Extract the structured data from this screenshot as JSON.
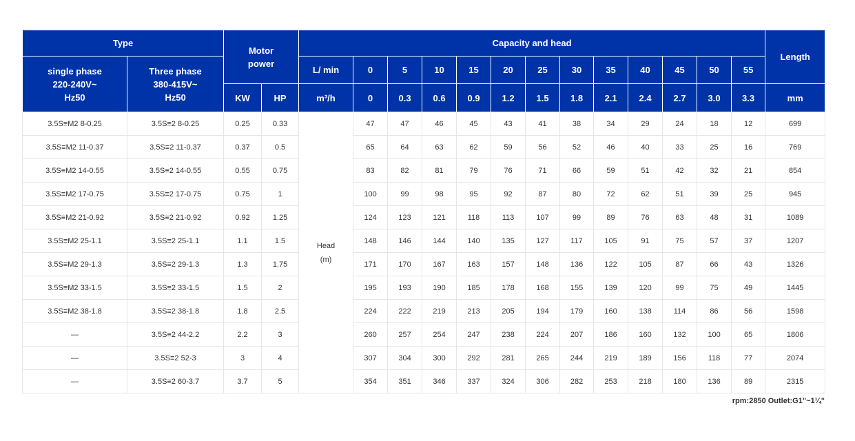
{
  "header": {
    "type": "Type",
    "single_phase": [
      "single phase",
      "220-240V~",
      "Hz50"
    ],
    "three_phase": [
      "Three phase",
      "380-415V~",
      "Hz50"
    ],
    "motor_power": [
      "Motor",
      "power"
    ],
    "kw": "KW",
    "hp": "HP",
    "capacity_and_head": "Capacity and head",
    "flow_lmin_label": "L/ min",
    "flow_m3h_label": "m³/h",
    "length": "Length",
    "length_unit": "mm",
    "flow_lmin": [
      "0",
      "5",
      "10",
      "15",
      "20",
      "25",
      "30",
      "35",
      "40",
      "45",
      "50",
      "55"
    ],
    "flow_m3h": [
      "0",
      "0.3",
      "0.6",
      "0.9",
      "1.2",
      "1.5",
      "1.8",
      "2.1",
      "2.4",
      "2.7",
      "3.0",
      "3.3"
    ]
  },
  "head_label": [
    "Head",
    "(m)"
  ],
  "rows": [
    {
      "single": "3.5S≡M2 8-0.25",
      "three": "3.5S≡2 8-0.25",
      "kw": "0.25",
      "hp": "0.33",
      "heads": [
        "47",
        "47",
        "46",
        "45",
        "43",
        "41",
        "38",
        "34",
        "29",
        "24",
        "18",
        "12"
      ],
      "length": "699"
    },
    {
      "single": "3.5S≡M2 11-0.37",
      "three": "3.5S≡2 11-0.37",
      "kw": "0.37",
      "hp": "0.5",
      "heads": [
        "65",
        "64",
        "63",
        "62",
        "59",
        "56",
        "52",
        "46",
        "40",
        "33",
        "25",
        "16"
      ],
      "length": "769"
    },
    {
      "single": "3.5S≡M2 14-0.55",
      "three": "3.5S≡2 14-0.55",
      "kw": "0.55",
      "hp": "0.75",
      "heads": [
        "83",
        "82",
        "81",
        "79",
        "76",
        "71",
        "66",
        "59",
        "51",
        "42",
        "32",
        "21"
      ],
      "length": "854"
    },
    {
      "single": "3.5S≡M2 17-0.75",
      "three": "3.5S≡2 17-0.75",
      "kw": "0.75",
      "hp": "1",
      "heads": [
        "100",
        "99",
        "98",
        "95",
        "92",
        "87",
        "80",
        "72",
        "62",
        "51",
        "39",
        "25"
      ],
      "length": "945"
    },
    {
      "single": "3.5S≡M2 21-0.92",
      "three": "3.5S≡2 21-0.92",
      "kw": "0.92",
      "hp": "1.25",
      "heads": [
        "124",
        "123",
        "121",
        "118",
        "113",
        "107",
        "99",
        "89",
        "76",
        "63",
        "48",
        "31"
      ],
      "length": "1089"
    },
    {
      "single": "3.5S≡M2 25-1.1",
      "three": "3.5S≡2 25-1.1",
      "kw": "1.1",
      "hp": "1.5",
      "heads": [
        "148",
        "146",
        "144",
        "140",
        "135",
        "127",
        "117",
        "105",
        "91",
        "75",
        "57",
        "37"
      ],
      "length": "1207"
    },
    {
      "single": "3.5S≡M2 29-1.3",
      "three": "3.5S≡2 29-1.3",
      "kw": "1.3",
      "hp": "1.75",
      "heads": [
        "171",
        "170",
        "167",
        "163",
        "157",
        "148",
        "136",
        "122",
        "105",
        "87",
        "66",
        "43"
      ],
      "length": "1326"
    },
    {
      "single": "3.5S≡M2 33-1.5",
      "three": "3.5S≡2 33-1.5",
      "kw": "1.5",
      "hp": "2",
      "heads": [
        "195",
        "193",
        "190",
        "185",
        "178",
        "168",
        "155",
        "139",
        "120",
        "99",
        "75",
        "49"
      ],
      "length": "1445"
    },
    {
      "single": "3.5S≡M2 38-1.8",
      "three": "3.5S≡2 38-1.8",
      "kw": "1.8",
      "hp": "2.5",
      "heads": [
        "224",
        "222",
        "219",
        "213",
        "205",
        "194",
        "179",
        "160",
        "138",
        "114",
        "86",
        "56"
      ],
      "length": "1598"
    },
    {
      "single": "—",
      "three": "3.5S≡2 44-2.2",
      "kw": "2.2",
      "hp": "3",
      "heads": [
        "260",
        "257",
        "254",
        "247",
        "238",
        "224",
        "207",
        "186",
        "160",
        "132",
        "100",
        "65"
      ],
      "length": "1806"
    },
    {
      "single": "—",
      "three": "3.5S≡2 52-3",
      "kw": "3",
      "hp": "4",
      "heads": [
        "307",
        "304",
        "300",
        "292",
        "281",
        "265",
        "244",
        "219",
        "189",
        "156",
        "118",
        "77"
      ],
      "length": "2074"
    },
    {
      "single": "—",
      "three": "3.5S≡2 60-3.7",
      "kw": "3.7",
      "hp": "5",
      "heads": [
        "354",
        "351",
        "346",
        "337",
        "324",
        "306",
        "282",
        "253",
        "218",
        "180",
        "136",
        "89"
      ],
      "length": "2315"
    }
  ],
  "footnote": "rpm:2850 Outlet:G1\"~1¼\"",
  "colors": {
    "header_bg": "#0033a8",
    "header_text": "#ffffff",
    "border": "#e6e6e6"
  }
}
